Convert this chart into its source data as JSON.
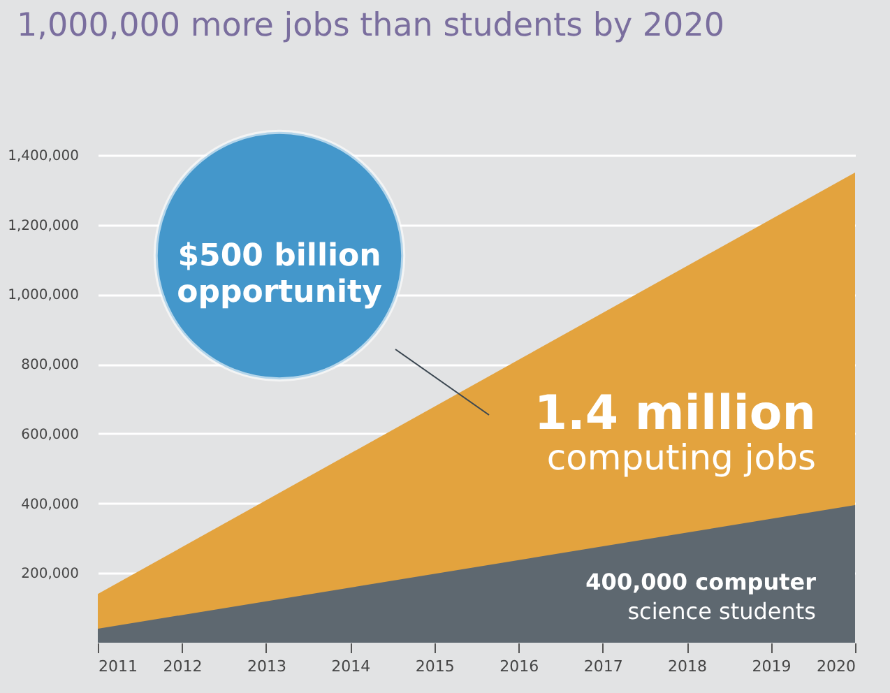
{
  "chart_data": {
    "type": "area",
    "title": "1,000,000 more jobs than students by 2020",
    "x": [
      2011,
      2020
    ],
    "series": [
      {
        "name": "1.4 million\ncomputing jobs",
        "color": "#e3a33e",
        "values": [
          140000,
          1350000
        ]
      },
      {
        "name": "400,000 computer\nscience students",
        "color": "#5e6870",
        "values": [
          40000,
          395000
        ]
      }
    ],
    "xlim": [
      2011,
      2020
    ],
    "xticks": [
      2011,
      2012,
      2013,
      2014,
      2015,
      2016,
      2017,
      2018,
      2019,
      2020
    ],
    "ylim": [
      0,
      1400000
    ],
    "yticks": [
      {
        "value": 200000,
        "label": "200,000"
      },
      {
        "value": 400000,
        "label": "400,000"
      },
      {
        "value": 600000,
        "label": "600,000"
      },
      {
        "value": 800000,
        "label": "800,000"
      },
      {
        "value": 1000000,
        "label": "1,000,000"
      },
      {
        "value": 1200000,
        "label": "1,200,000"
      },
      {
        "value": 1400000,
        "label": "1,400,000"
      }
    ],
    "grid": "y",
    "annotations": [
      "$500 billion\nopportunity"
    ]
  }
}
